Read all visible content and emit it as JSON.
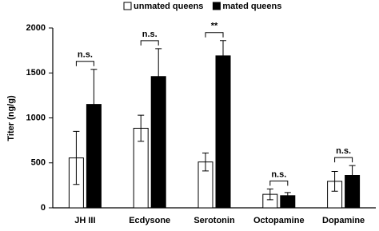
{
  "chart_data": {
    "type": "bar",
    "y_label": "Titer (ng/g)",
    "categories": [
      "JH III",
      "Ecdysone",
      "Serotonin",
      "Octopamine",
      "Dopamine"
    ],
    "series": [
      {
        "name": "unmated queens",
        "color": "#ffffff",
        "values": [
          555,
          885,
          510,
          150,
          295
        ],
        "errors": [
          295,
          145,
          100,
          60,
          110
        ]
      },
      {
        "name": "mated queens",
        "color": "#000000",
        "values": [
          1150,
          1460,
          1690,
          135,
          360
        ],
        "errors": [
          390,
          310,
          170,
          35,
          110
        ]
      }
    ],
    "annotations": [
      "n.s.",
      "n.s.",
      "**",
      "n.s.",
      "n.s."
    ],
    "ylim": [
      0,
      2000
    ],
    "yticks": [
      0,
      500,
      1000,
      1500,
      2000
    ],
    "legend": "top"
  }
}
